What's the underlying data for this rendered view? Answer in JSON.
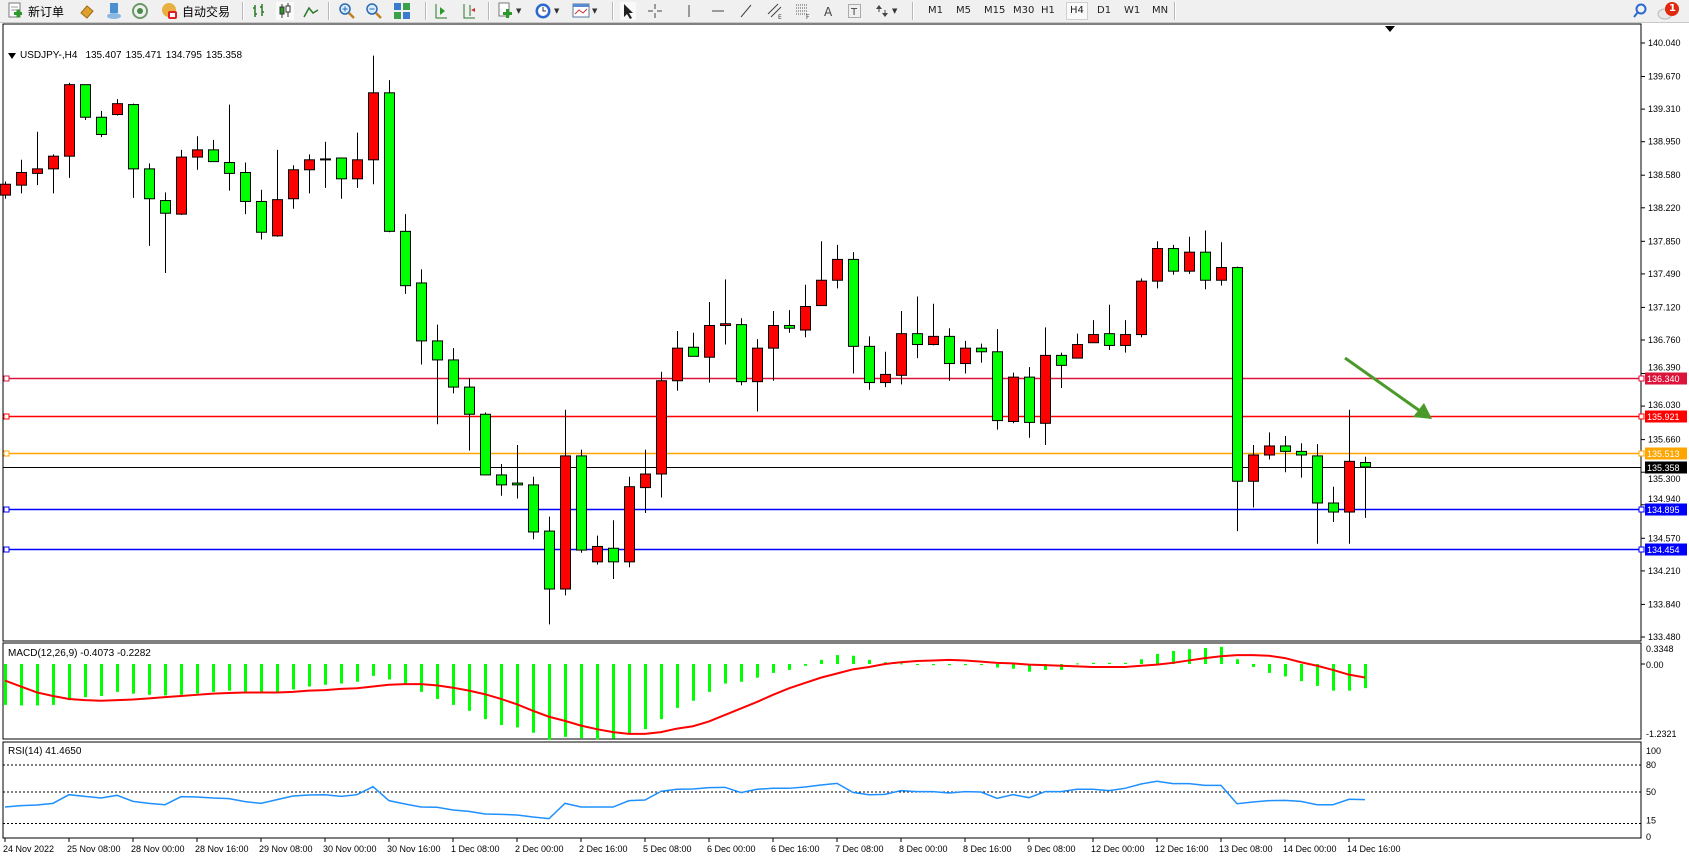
{
  "toolbar": {
    "new_order_label": "新订单",
    "autotrade_label": "自动交易",
    "timeframes": [
      "M1",
      "M5",
      "M15",
      "M30",
      "H1",
      "H4",
      "D1",
      "W1",
      "MN"
    ],
    "active_timeframe": "H4",
    "notification_count": "1",
    "icons": [
      "new-order-icon",
      "market-watch-icon",
      "navigator-icon",
      "signals-icon",
      "autotrade-icon",
      "bar-chart-icon",
      "candlestick-icon",
      "line-chart-icon",
      "zoom-in-icon",
      "zoom-out-icon",
      "tile-windows-icon",
      "auto-scroll-icon",
      "chart-shift-icon",
      "indicators-icon",
      "periods-icon",
      "templates-icon",
      "cursor-icon",
      "crosshair-icon",
      "vertical-line-icon",
      "horizontal-line-icon",
      "trendline-icon",
      "equidistant-channel-icon",
      "fibonacci-icon",
      "text-icon",
      "text-label-icon",
      "arrows-icon",
      "search-icon",
      "notification-icon"
    ]
  },
  "chart": {
    "symbol": "USDJPY-,H4",
    "open": "135.407",
    "high": "135.471",
    "low": "134.795",
    "close": "135.358",
    "macd_label": "MACD(12,26,9) -0.4073 -0.2282",
    "rsi_label": "RSI(14) 41.4650"
  },
  "chart_data": {
    "type": "candlestick",
    "up_color": "#ff0000",
    "down_color": "#00ff00",
    "price_ticks": [
      "140.040",
      "139.670",
      "139.310",
      "138.950",
      "138.580",
      "138.220",
      "137.850",
      "137.490",
      "137.120",
      "136.760",
      "136.390",
      "136.030",
      "135.660",
      "135.300",
      "134.940",
      "134.570",
      "134.210",
      "133.840",
      "133.480"
    ],
    "ylim": [
      133.48,
      140.04
    ],
    "time_labels": [
      "24 Nov 2022",
      "25 Nov 08:00",
      "28 Nov 00:00",
      "28 Nov 16:00",
      "29 Nov 08:00",
      "30 Nov 00:00",
      "30 Nov 16:00",
      "1 Dec 08:00",
      "2 Dec 00:00",
      "2 Dec 16:00",
      "5 Dec 08:00",
      "6 Dec 00:00",
      "6 Dec 16:00",
      "7 Dec 08:00",
      "8 Dec 00:00",
      "8 Dec 16:00",
      "9 Dec 08:00",
      "12 Dec 00:00",
      "12 Dec 16:00",
      "13 Dec 08:00",
      "14 Dec 00:00",
      "14 Dec 16:00"
    ],
    "candles_ohlc": [
      [
        138.36,
        138.51,
        138.32,
        138.48
      ],
      [
        138.47,
        138.75,
        138.38,
        138.61
      ],
      [
        138.6,
        139.06,
        138.47,
        138.65
      ],
      [
        138.65,
        138.81,
        138.38,
        138.79
      ],
      [
        138.79,
        139.6,
        138.55,
        139.58
      ],
      [
        139.58,
        139.58,
        139.19,
        139.22
      ],
      [
        139.22,
        139.29,
        139.0,
        139.03
      ],
      [
        139.25,
        139.42,
        139.24,
        139.37
      ],
      [
        139.36,
        139.37,
        138.33,
        138.65
      ],
      [
        138.65,
        138.71,
        137.8,
        138.32
      ],
      [
        138.3,
        138.39,
        137.5,
        138.16
      ],
      [
        138.15,
        138.86,
        138.14,
        138.78
      ],
      [
        138.78,
        139.01,
        138.64,
        138.86
      ],
      [
        138.86,
        138.97,
        138.73,
        138.73
      ],
      [
        138.72,
        139.36,
        138.41,
        138.6
      ],
      [
        138.61,
        138.72,
        138.15,
        138.29
      ],
      [
        138.29,
        138.42,
        137.87,
        137.95
      ],
      [
        137.91,
        138.86,
        137.9,
        138.31
      ],
      [
        138.32,
        138.69,
        138.21,
        138.64
      ],
      [
        138.64,
        138.81,
        138.38,
        138.75
      ],
      [
        138.75,
        138.95,
        138.44,
        138.76
      ],
      [
        138.77,
        138.77,
        138.32,
        138.54
      ],
      [
        138.54,
        139.05,
        138.44,
        138.75
      ],
      [
        138.75,
        139.9,
        138.48,
        139.49
      ],
      [
        139.49,
        139.63,
        137.95,
        137.96
      ],
      [
        137.96,
        138.15,
        137.27,
        137.36
      ],
      [
        137.39,
        137.54,
        136.49,
        136.75
      ],
      [
        136.75,
        136.93,
        135.83,
        136.54
      ],
      [
        136.54,
        136.67,
        136.17,
        136.24
      ],
      [
        136.24,
        136.34,
        135.54,
        135.94
      ],
      [
        135.94,
        135.96,
        135.27,
        135.27
      ],
      [
        135.27,
        135.39,
        135.04,
        135.16
      ],
      [
        135.18,
        135.6,
        135.01,
        135.16
      ],
      [
        135.16,
        135.25,
        134.56,
        134.64
      ],
      [
        134.65,
        134.81,
        133.62,
        134.01
      ],
      [
        134.01,
        135.99,
        133.94,
        135.48
      ],
      [
        135.48,
        135.55,
        134.41,
        134.44
      ],
      [
        134.31,
        134.6,
        134.28,
        134.48
      ],
      [
        134.46,
        134.77,
        134.12,
        134.31
      ],
      [
        134.31,
        135.25,
        134.25,
        135.14
      ],
      [
        135.13,
        135.55,
        134.85,
        135.28
      ],
      [
        135.28,
        136.41,
        135.02,
        136.31
      ],
      [
        136.31,
        136.86,
        136.2,
        136.67
      ],
      [
        136.68,
        136.84,
        136.58,
        136.58
      ],
      [
        136.57,
        137.18,
        136.29,
        136.92
      ],
      [
        136.92,
        137.43,
        136.71,
        136.94
      ],
      [
        136.93,
        137.0,
        136.26,
        136.3
      ],
      [
        136.3,
        136.77,
        135.97,
        136.67
      ],
      [
        136.67,
        137.08,
        136.31,
        136.92
      ],
      [
        136.92,
        137.09,
        136.84,
        136.89
      ],
      [
        136.87,
        137.37,
        136.79,
        137.13
      ],
      [
        137.14,
        137.85,
        137.14,
        137.42
      ],
      [
        137.42,
        137.81,
        137.33,
        137.65
      ],
      [
        137.65,
        137.73,
        136.39,
        136.69
      ],
      [
        136.69,
        136.8,
        136.21,
        136.29
      ],
      [
        136.29,
        136.63,
        136.24,
        136.38
      ],
      [
        136.37,
        137.08,
        136.27,
        136.83
      ],
      [
        136.83,
        137.24,
        136.56,
        136.71
      ],
      [
        136.71,
        137.16,
        136.7,
        136.8
      ],
      [
        136.8,
        136.89,
        136.31,
        136.5
      ],
      [
        136.5,
        136.75,
        136.39,
        136.67
      ],
      [
        136.67,
        136.72,
        136.51,
        136.63
      ],
      [
        136.63,
        136.88,
        135.77,
        135.87
      ],
      [
        135.86,
        136.4,
        135.84,
        136.35
      ],
      [
        136.35,
        136.46,
        135.68,
        135.85
      ],
      [
        135.84,
        136.9,
        135.6,
        136.59
      ],
      [
        136.59,
        136.62,
        136.23,
        136.48
      ],
      [
        136.56,
        136.83,
        136.56,
        136.71
      ],
      [
        136.73,
        136.98,
        136.73,
        136.82
      ],
      [
        136.83,
        137.15,
        136.65,
        136.7
      ],
      [
        136.7,
        136.98,
        136.62,
        136.82
      ],
      [
        136.82,
        137.44,
        136.79,
        137.41
      ],
      [
        137.41,
        137.85,
        137.33,
        137.77
      ],
      [
        137.77,
        137.81,
        137.48,
        137.52
      ],
      [
        137.52,
        137.9,
        137.49,
        137.73
      ],
      [
        137.73,
        137.97,
        137.32,
        137.42
      ],
      [
        137.42,
        137.84,
        137.36,
        137.56
      ],
      [
        137.56,
        137.57,
        134.65,
        135.2
      ],
      [
        135.2,
        135.6,
        134.91,
        135.49
      ],
      [
        135.49,
        135.74,
        135.44,
        135.59
      ],
      [
        135.59,
        135.7,
        135.3,
        135.53
      ],
      [
        135.53,
        135.62,
        135.24,
        135.49
      ],
      [
        135.48,
        135.61,
        134.51,
        134.96
      ],
      [
        134.96,
        135.14,
        134.75,
        134.86
      ],
      [
        134.86,
        135.99,
        134.51,
        135.42
      ],
      [
        135.407,
        135.471,
        134.795,
        135.358
      ]
    ],
    "levels": [
      {
        "price": 136.34,
        "label": "136.340",
        "color": "#dc143c"
      },
      {
        "price": 135.921,
        "label": "135.921",
        "color": "#ff0000"
      },
      {
        "price": 135.513,
        "label": "135.513",
        "color": "#ffa500"
      },
      {
        "price": 134.895,
        "label": "134.895",
        "color": "#0000ff"
      },
      {
        "price": 134.454,
        "label": "134.454",
        "color": "#0000ff"
      }
    ],
    "current_price": {
      "price": 135.358,
      "label": "135.358",
      "color": "#000000"
    },
    "arrow_color": "#4a9a2a",
    "macd": {
      "ticks": [
        "0.3348",
        "0.00",
        "-1.2321"
      ],
      "ylim": [
        -1.2321,
        0.3348
      ],
      "histogram_color": "#00ff00",
      "signal_color": "#ff0000",
      "histogram": [
        -0.69,
        -0.7,
        -0.7,
        -0.69,
        -0.61,
        -0.56,
        -0.54,
        -0.47,
        -0.5,
        -0.52,
        -0.53,
        -0.52,
        -0.5,
        -0.47,
        -0.45,
        -0.47,
        -0.48,
        -0.47,
        -0.43,
        -0.38,
        -0.35,
        -0.33,
        -0.3,
        -0.2,
        -0.26,
        -0.33,
        -0.47,
        -0.59,
        -0.69,
        -0.79,
        -0.93,
        -1.03,
        -1.07,
        -1.16,
        -1.28,
        -1.23,
        -1.25,
        -1.27,
        -1.26,
        -1.18,
        -1.1,
        -0.93,
        -0.74,
        -0.62,
        -0.47,
        -0.33,
        -0.3,
        -0.23,
        -0.15,
        -0.1,
        -0.03,
        0.07,
        0.15,
        0.14,
        0.07,
        0.03,
        0.01,
        0.0,
        -0.02,
        -0.02,
        -0.02,
        -0.01,
        -0.06,
        -0.08,
        -0.13,
        -0.1,
        -0.1,
        0.01,
        0.02,
        0.02,
        0.02,
        0.08,
        0.17,
        0.22,
        0.25,
        0.27,
        0.29,
        0.08,
        -0.05,
        -0.15,
        -0.21,
        -0.29,
        -0.37,
        -0.45,
        -0.45,
        -0.4073
      ],
      "signal": [
        -0.28,
        -0.38,
        -0.48,
        -0.54,
        -0.59,
        -0.61,
        -0.62,
        -0.61,
        -0.6,
        -0.58,
        -0.56,
        -0.54,
        -0.52,
        -0.5,
        -0.49,
        -0.48,
        -0.48,
        -0.48,
        -0.47,
        -0.45,
        -0.44,
        -0.42,
        -0.41,
        -0.38,
        -0.35,
        -0.34,
        -0.34,
        -0.36,
        -0.4,
        -0.45,
        -0.51,
        -0.59,
        -0.68,
        -0.79,
        -0.89,
        -0.96,
        -1.04,
        -1.1,
        -1.15,
        -1.18,
        -1.18,
        -1.15,
        -1.09,
        -1.05,
        -0.97,
        -0.86,
        -0.75,
        -0.64,
        -0.52,
        -0.41,
        -0.32,
        -0.23,
        -0.16,
        -0.09,
        -0.05,
        0.0,
        0.03,
        0.05,
        0.06,
        0.07,
        0.06,
        0.04,
        0.02,
        0.01,
        -0.01,
        -0.02,
        -0.03,
        -0.04,
        -0.05,
        -0.05,
        -0.05,
        -0.03,
        -0.01,
        0.02,
        0.06,
        0.1,
        0.13,
        0.15,
        0.15,
        0.14,
        0.1,
        0.03,
        -0.03,
        -0.1,
        -0.18,
        -0.2282
      ]
    },
    "rsi": {
      "ticks": [
        "100",
        "80",
        "50",
        "15",
        "0"
      ],
      "levels": [
        80,
        50,
        15
      ],
      "ylim": [
        0,
        100
      ],
      "color": "#1e90ff",
      "values": [
        33.3,
        34.8,
        35.6,
        37.4,
        47.0,
        45.2,
        43.3,
        46.3,
        39.6,
        37.4,
        35.9,
        44.8,
        44.4,
        43.3,
        42.6,
        39.3,
        37.4,
        41.5,
        45.6,
        46.7,
        47.0,
        45.2,
        47.0,
        55.9,
        40.4,
        36.7,
        33.3,
        33.0,
        30.0,
        28.5,
        25.6,
        25.2,
        24.4,
        22.2,
        20.4,
        37.4,
        33.3,
        33.3,
        33.3,
        40.4,
        41.1,
        50.7,
        53.0,
        53.3,
        54.8,
        55.2,
        49.3,
        53.0,
        54.1,
        54.1,
        55.6,
        57.8,
        59.6,
        49.6,
        47.0,
        47.4,
        51.5,
        50.4,
        50.4,
        48.9,
        50.4,
        50.0,
        43.0,
        47.0,
        43.7,
        50.4,
        50.4,
        53.0,
        53.0,
        51.5,
        54.1,
        58.9,
        61.9,
        59.3,
        59.3,
        57.4,
        57.4,
        37.0,
        38.9,
        40.4,
        40.7,
        39.6,
        35.9,
        35.9,
        41.9,
        41.465
      ]
    }
  }
}
